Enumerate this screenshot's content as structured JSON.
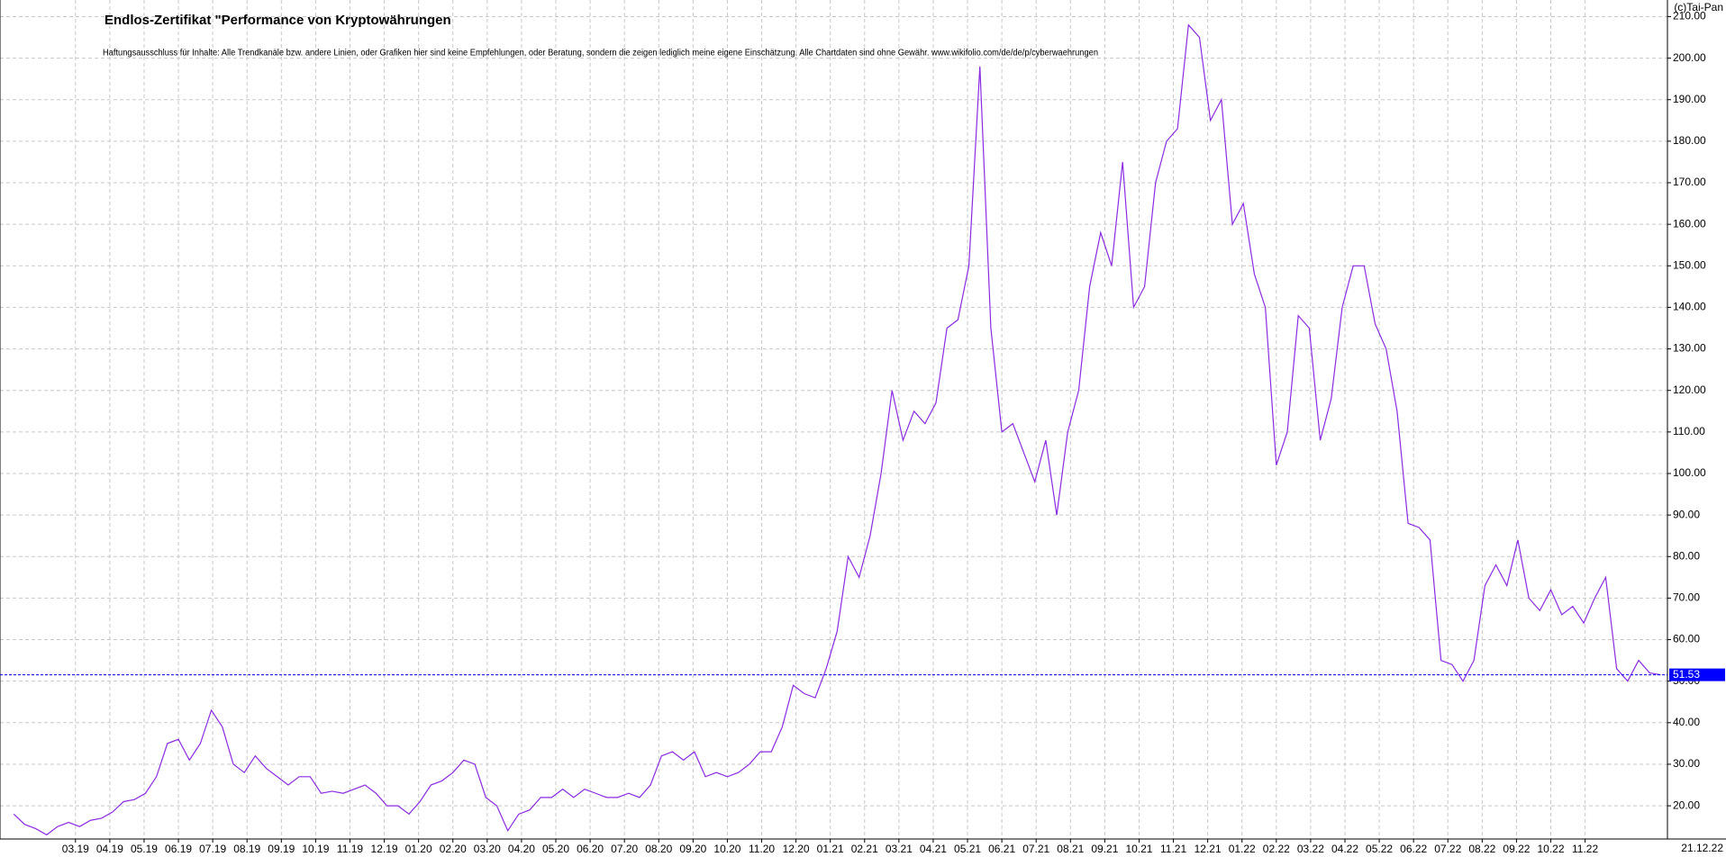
{
  "chart_data": {
    "type": "line",
    "title": "Endlos-Zertifikat \"Performance von Kryptowährungen",
    "subtitle": "Haftungsausschluss für Inhalte: Alle Trendkanäle bzw. andere Linien, oder Grafiken hier sind keine Empfehlungen, oder Beratung, sondern die zeigen lediglich meine eigene Einschätzung. Alle Chartdaten sind ohne Gewähr.  www.wikifolio.com/de/de/p/cyberwaehrungen",
    "copyright": "(c)Tai-Pan",
    "date_label": "21.12.22",
    "last_value": 51.53,
    "grid": true,
    "x": [
      0.2,
      0.52,
      0.84,
      1.16,
      1.48,
      1.8,
      2.12,
      2.44,
      2.76,
      3.08,
      3.4,
      3.72,
      4.04,
      4.36,
      4.68,
      5,
      5.32,
      5.64,
      5.96,
      6.28,
      6.6,
      6.92,
      7.24,
      7.56,
      7.88,
      8.2,
      8.52,
      8.84,
      9.16,
      9.48,
      9.8,
      10.12,
      10.44,
      10.76,
      11.08,
      11.4,
      11.72,
      12.04,
      12.36,
      12.68,
      13,
      13.32,
      13.64,
      13.96,
      14.28,
      14.6,
      14.92,
      15.24,
      15.56,
      15.88,
      16.2,
      16.52,
      16.84,
      17.16,
      17.48,
      17.8,
      18.12,
      18.44,
      18.76,
      19.08,
      19.4,
      19.72,
      20.04,
      20.36,
      20.68,
      21,
      21.32,
      21.64,
      21.96,
      22.28,
      22.6,
      22.92,
      23.24,
      23.56,
      23.88,
      24.2,
      24.52,
      24.84,
      25.16,
      25.48,
      25.8,
      26.12,
      26.44,
      26.76,
      27.08,
      27.4,
      27.72,
      28.04,
      28.36,
      28.68,
      29,
      29.32,
      29.64,
      29.96,
      30.28,
      30.6,
      30.92,
      31.24,
      31.56,
      31.88,
      32.2,
      32.52,
      32.84,
      33.16,
      33.48,
      33.8,
      34.12,
      34.44,
      34.76,
      35.08,
      35.4,
      35.72,
      36.04,
      36.36,
      36.68,
      37,
      37.32,
      37.64,
      37.96,
      38.28,
      38.6,
      38.92,
      39.24,
      39.56,
      39.88,
      40.2,
      40.52,
      40.84,
      41.16,
      41.48,
      41.8,
      42.12,
      42.44,
      42.76,
      43.08,
      43.4,
      43.72,
      44.04,
      44.36,
      44.68,
      45,
      45.32,
      45.64,
      45.96,
      46.28,
      46.6,
      46.92,
      47.24,
      47.56,
      47.88,
      48.2
    ],
    "series": [
      {
        "color": "#8a2be2",
        "values": [
          18,
          15.5,
          14.5,
          13,
          15,
          16,
          15,
          16.5,
          17,
          18.5,
          21,
          21.5,
          23,
          27,
          35,
          36,
          31,
          35,
          43,
          39,
          30,
          28,
          32,
          29,
          27,
          25,
          27,
          27,
          23,
          23.5,
          23,
          24,
          25,
          23,
          20,
          20,
          18,
          21,
          25,
          26,
          28,
          31,
          30,
          22,
          20,
          14,
          18,
          19,
          22,
          22,
          24,
          22,
          24,
          23,
          22,
          22,
          23,
          22,
          25,
          32,
          33,
          31,
          33,
          27,
          28,
          27,
          28,
          30,
          33,
          33,
          39,
          49,
          47,
          46,
          53,
          62,
          80,
          75,
          85,
          100,
          120,
          108,
          115,
          112,
          117,
          135,
          137,
          150,
          198,
          135,
          110,
          112,
          105,
          98,
          108,
          90,
          110,
          120,
          145,
          158,
          150,
          175,
          140,
          145,
          170,
          180,
          183,
          208,
          205,
          185,
          190,
          160,
          165,
          148,
          140,
          102,
          110,
          138,
          135,
          108,
          118,
          140,
          150,
          150,
          136,
          130,
          115,
          88,
          87,
          84,
          55,
          54,
          50,
          55,
          73,
          78,
          73,
          84,
          70,
          67,
          72,
          66,
          68,
          64,
          70,
          75,
          53,
          50,
          55,
          52,
          51.53
        ]
      }
    ],
    "xlim": [
      -0.2,
      48.4
    ],
    "ylim": [
      12,
      214
    ],
    "xticks": [
      {
        "value": 2,
        "label": "03.19"
      },
      {
        "value": 3,
        "label": "04.19"
      },
      {
        "value": 4,
        "label": "05.19"
      },
      {
        "value": 5,
        "label": "06.19"
      },
      {
        "value": 6,
        "label": "07.19"
      },
      {
        "value": 7,
        "label": "08.19"
      },
      {
        "value": 8,
        "label": "09.19"
      },
      {
        "value": 9,
        "label": "10.19"
      },
      {
        "value": 10,
        "label": "11.19"
      },
      {
        "value": 11,
        "label": "12.19"
      },
      {
        "value": 12,
        "label": "01.20"
      },
      {
        "value": 13,
        "label": "02.20"
      },
      {
        "value": 14,
        "label": "03.20"
      },
      {
        "value": 15,
        "label": "04.20"
      },
      {
        "value": 16,
        "label": "05.20"
      },
      {
        "value": 17,
        "label": "06.20"
      },
      {
        "value": 18,
        "label": "07.20"
      },
      {
        "value": 19,
        "label": "08.20"
      },
      {
        "value": 20,
        "label": "09.20"
      },
      {
        "value": 21,
        "label": "10.20"
      },
      {
        "value": 22,
        "label": "11.20"
      },
      {
        "value": 23,
        "label": "12.20"
      },
      {
        "value": 24,
        "label": "01.21"
      },
      {
        "value": 25,
        "label": "02.21"
      },
      {
        "value": 26,
        "label": "03.21"
      },
      {
        "value": 27,
        "label": "04.21"
      },
      {
        "value": 28,
        "label": "05.21"
      },
      {
        "value": 29,
        "label": "06.21"
      },
      {
        "value": 30,
        "label": "07.21"
      },
      {
        "value": 31,
        "label": "08.21"
      },
      {
        "value": 32,
        "label": "09.21"
      },
      {
        "value": 33,
        "label": "10.21"
      },
      {
        "value": 34,
        "label": "11.21"
      },
      {
        "value": 35,
        "label": "12.21"
      },
      {
        "value": 36,
        "label": "01.22"
      },
      {
        "value": 37,
        "label": "02.22"
      },
      {
        "value": 38,
        "label": "03.22"
      },
      {
        "value": 39,
        "label": "04.22"
      },
      {
        "value": 40,
        "label": "05.22"
      },
      {
        "value": 41,
        "label": "06.22"
      },
      {
        "value": 42,
        "label": "07.22"
      },
      {
        "value": 43,
        "label": "08.22"
      },
      {
        "value": 44,
        "label": "09.22"
      },
      {
        "value": 45,
        "label": "10.22"
      },
      {
        "value": 46,
        "label": "11.22"
      }
    ],
    "yticks": [
      {
        "value": 20,
        "label": "20.00"
      },
      {
        "value": 30,
        "label": "30.00"
      },
      {
        "value": 40,
        "label": "40.00"
      },
      {
        "value": 50,
        "label": "50.00"
      },
      {
        "value": 60,
        "label": "60.00"
      },
      {
        "value": 70,
        "label": "70.00"
      },
      {
        "value": 80,
        "label": "80.00"
      },
      {
        "value": 90,
        "label": "90.00"
      },
      {
        "value": 100,
        "label": "100.00"
      },
      {
        "value": 110,
        "label": "110.00"
      },
      {
        "value": 120,
        "label": "120.00"
      },
      {
        "value": 130,
        "label": "130.00"
      },
      {
        "value": 140,
        "label": "140.00"
      },
      {
        "value": 150,
        "label": "150.00"
      },
      {
        "value": 160,
        "label": "160.00"
      },
      {
        "value": 170,
        "label": "170.00"
      },
      {
        "value": 180,
        "label": "180.00"
      },
      {
        "value": 190,
        "label": "190.00"
      },
      {
        "value": 200,
        "label": "200.00"
      },
      {
        "value": 210,
        "label": "210.00"
      }
    ]
  }
}
